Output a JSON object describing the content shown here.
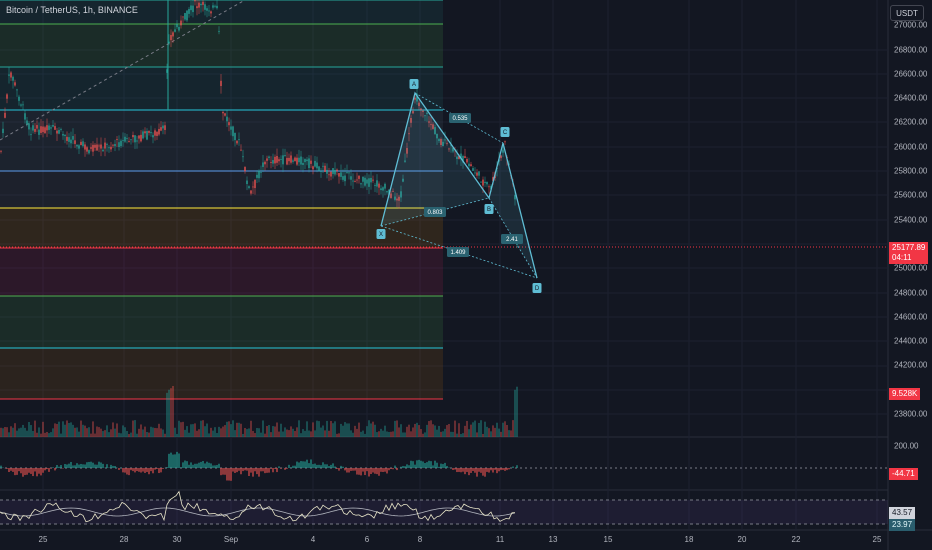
{
  "header": {
    "symbol_title": "Bitcoin / TetherUS, 1h, BINANCE",
    "currency": "USDT"
  },
  "price_axis": {
    "labels": [
      "27000.00",
      "26800.00",
      "26600.00",
      "26400.00",
      "26200.00",
      "26000.00",
      "25800.00",
      "25600.00",
      "25400.00",
      "25000.00",
      "24800.00",
      "24600.00",
      "24400.00",
      "24200.00",
      "23800.00"
    ],
    "current_price": "25177.89",
    "countdown": "04:11",
    "volume_value": "9.528K"
  },
  "indicators": {
    "macd_axis_label": "200.00",
    "macd_value": "-44.71",
    "rsi_upper_value": "43.57",
    "rsi_lower_value": "23.97"
  },
  "time_axis": {
    "labels": [
      "25",
      "28",
      "30",
      "Sep",
      "4",
      "6",
      "8",
      "11",
      "13",
      "15",
      "18",
      "20",
      "22",
      "25"
    ]
  },
  "harmonic_pattern": {
    "points": [
      "X",
      "A",
      "B",
      "C",
      "D"
    ],
    "ratios": [
      "0.535",
      "0.803",
      "1.409",
      "2.41"
    ]
  },
  "colors": {
    "background": "#131722",
    "bullish": "#26a69a",
    "bearish": "#ef5350",
    "pattern": "#5fbdd4",
    "current_price": "#f23645"
  }
}
